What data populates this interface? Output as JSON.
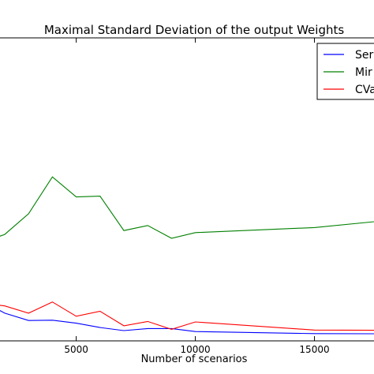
{
  "chart_data": {
    "type": "line",
    "title": "Maximal Standard Deviation of the output Weights",
    "xlabel": "Number of scenarios",
    "ylabel": "",
    "xlim": [
      1800,
      17500
    ],
    "ylim": [
      -0.005,
      0.29
    ],
    "x_ticks": [
      5000,
      10000,
      15000
    ],
    "grid": false,
    "legend_position": "top-right",
    "series": [
      {
        "name": "Ser",
        "color": "#0000ff",
        "x": [
          1500,
          2000,
          3000,
          4000,
          5000,
          6000,
          7000,
          8000,
          9000,
          10000,
          15000,
          17500
        ],
        "y": [
          0.0282,
          0.022,
          0.0148,
          0.0151,
          0.0122,
          0.008,
          0.005,
          0.007,
          0.007,
          0.0041,
          0.0021,
          0.0019
        ]
      },
      {
        "name": "Mir",
        "color": "#008000",
        "x": [
          1500,
          2000,
          3000,
          4000,
          5000,
          6000,
          7000,
          8000,
          9000,
          10000,
          15000,
          17500
        ],
        "y": [
          0.0945,
          0.0986,
          0.1188,
          0.1546,
          0.1351,
          0.1359,
          0.1024,
          0.1073,
          0.0949,
          0.1004,
          0.1053,
          0.111
        ]
      },
      {
        "name": "CVa",
        "color": "#ff0000",
        "x": [
          1500,
          2000,
          3000,
          4000,
          5000,
          6000,
          7000,
          8000,
          9000,
          10000,
          15000,
          17500
        ],
        "y": [
          0.0306,
          0.029,
          0.022,
          0.0329,
          0.019,
          0.0238,
          0.0097,
          0.0139,
          0.0062,
          0.0134,
          0.0055,
          0.0053
        ]
      }
    ]
  }
}
